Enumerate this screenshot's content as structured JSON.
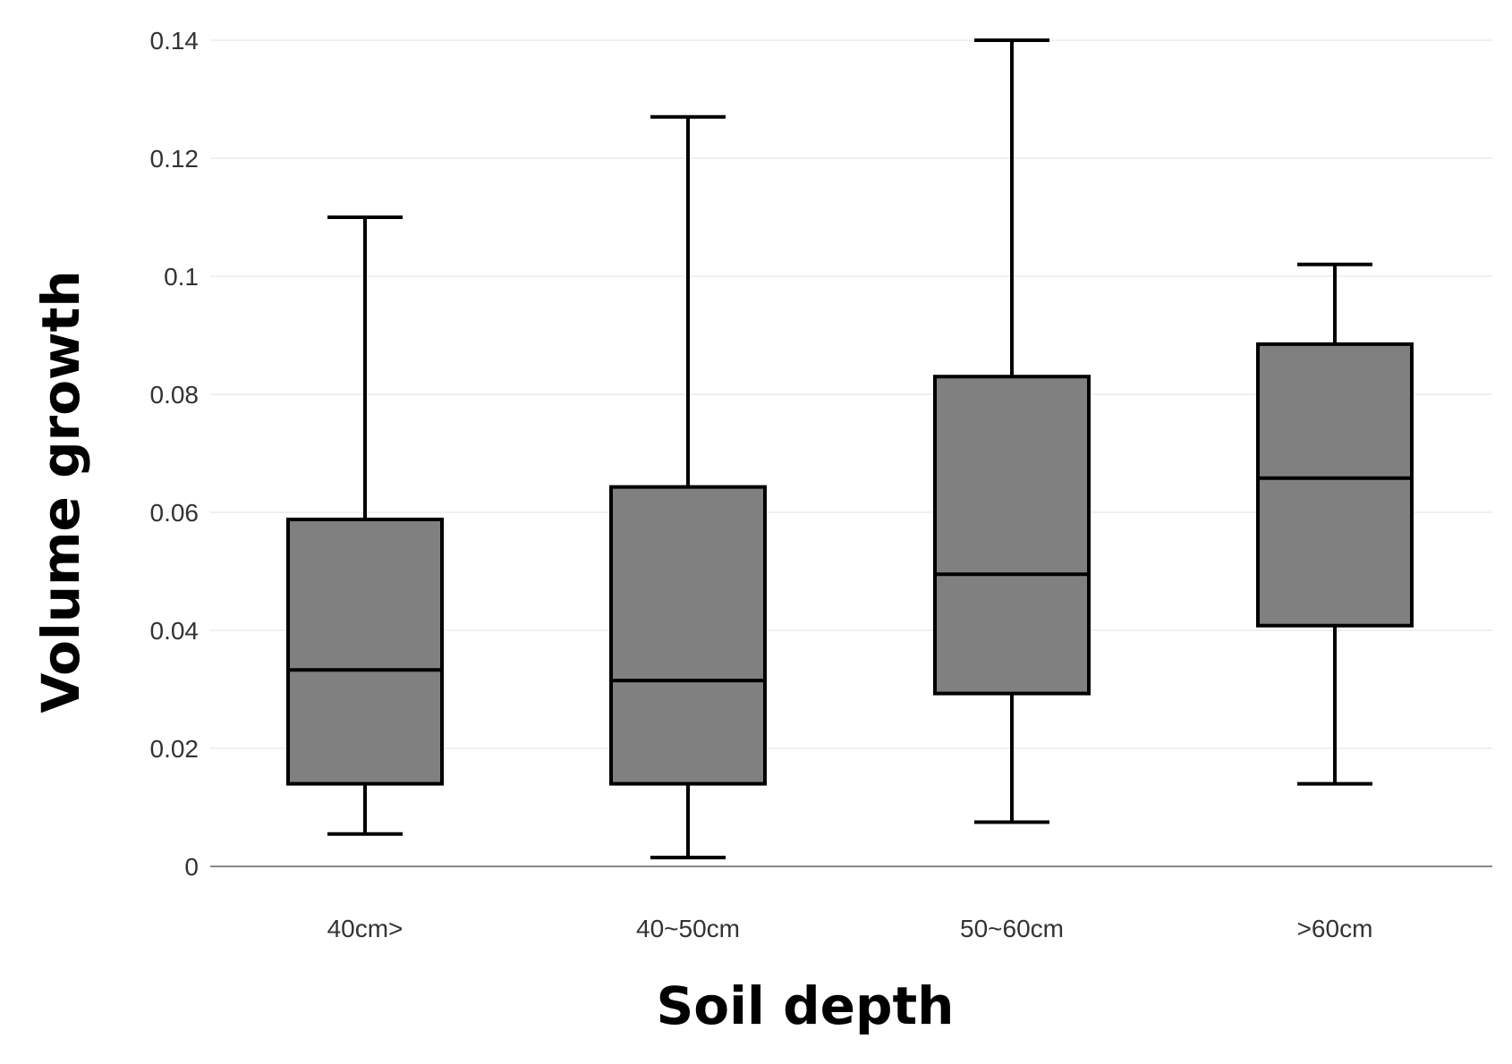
{
  "chart_data": {
    "type": "boxplot",
    "title": "",
    "xlabel": "Soil depth",
    "ylabel": "Volume growth",
    "ylim": [
      0,
      0.14
    ],
    "yticks": [
      {
        "value": 0,
        "label": "0"
      },
      {
        "value": 0.02,
        "label": "0.02"
      },
      {
        "value": 0.04,
        "label": "0.04"
      },
      {
        "value": 0.06,
        "label": "0.06"
      },
      {
        "value": 0.08,
        "label": "0.08"
      },
      {
        "value": 0.1,
        "label": "0.1"
      },
      {
        "value": 0.12,
        "label": "0.12"
      },
      {
        "value": 0.14,
        "label": "0.14"
      }
    ],
    "grid": true,
    "legend": "none",
    "categories": [
      "40cm>",
      "40~50cm",
      "50~60cm",
      ">60cm"
    ],
    "boxes": [
      {
        "category": "40cm>",
        "min": 0.0055,
        "q1": 0.014,
        "median": 0.0333,
        "q3": 0.0588,
        "max": 0.11
      },
      {
        "category": "40~50cm",
        "min": 0.0015,
        "q1": 0.014,
        "median": 0.0315,
        "q3": 0.0643,
        "max": 0.127
      },
      {
        "category": "50~60cm",
        "min": 0.0075,
        "q1": 0.0293,
        "median": 0.0495,
        "q3": 0.083,
        "max": 0.14
      },
      {
        "category": ">60cm",
        "min": 0.014,
        "q1": 0.0408,
        "median": 0.0658,
        "q3": 0.0885,
        "max": 0.102
      }
    ],
    "box_fill": "#808080",
    "line_color": "#000000"
  }
}
